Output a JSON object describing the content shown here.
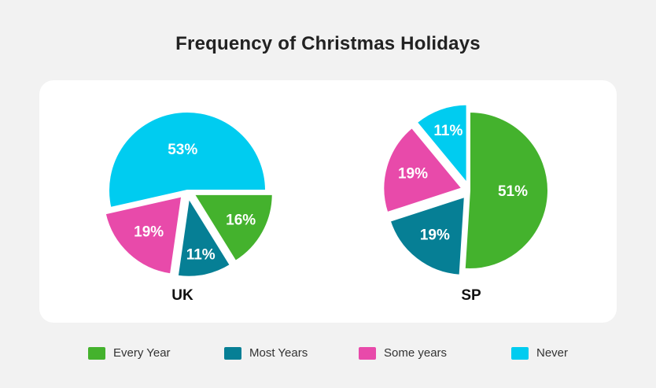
{
  "title": "Frequency of Christmas Holidays",
  "colors": {
    "every_year": "#44b22d",
    "most_years": "#067f95",
    "some_years": "#e84aaa",
    "never": "#00ccf0"
  },
  "legend": [
    {
      "label": "Every Year",
      "color": "#44b22d"
    },
    {
      "label": "Most Years",
      "color": "#067f95"
    },
    {
      "label": "Some years",
      "color": "#e84aaa"
    },
    {
      "label": "Never",
      "color": "#00ccf0"
    }
  ],
  "chart_data": [
    {
      "type": "pie",
      "title": "UK",
      "slices": [
        {
          "category": "Every Year",
          "value": 16,
          "label": "16%",
          "color": "#44b22d"
        },
        {
          "category": "Most Years",
          "value": 11,
          "label": "11%",
          "color": "#067f95"
        },
        {
          "category": "Some years",
          "value": 19,
          "label": "19%",
          "color": "#e84aaa"
        },
        {
          "category": "Never",
          "value": 53,
          "label": "53%",
          "color": "#00ccf0"
        }
      ]
    },
    {
      "type": "pie",
      "title": "SP",
      "slices": [
        {
          "category": "Every Year",
          "value": 51,
          "label": "51%",
          "color": "#44b22d"
        },
        {
          "category": "Most Years",
          "value": 19,
          "label": "19%",
          "color": "#067f95"
        },
        {
          "category": "Some years",
          "value": 19,
          "label": "19%",
          "color": "#e84aaa"
        },
        {
          "category": "Never",
          "value": 11,
          "label": "11%",
          "color": "#00ccf0"
        }
      ]
    }
  ]
}
